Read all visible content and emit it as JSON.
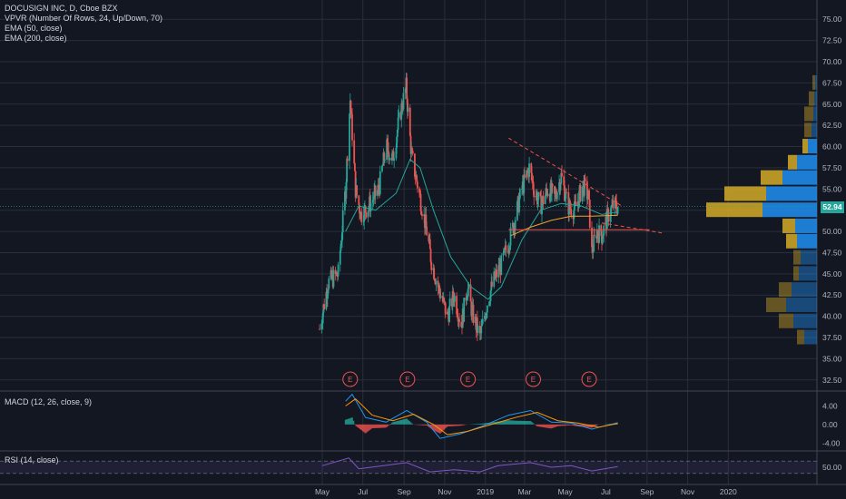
{
  "legend": {
    "main": "DOCUSIGN INC, D, Cboe BZX",
    "vpvr": "VPVR (Number Of Rows, 24, Up/Down, 70)",
    "ema50": "EMA (50, close)",
    "ema200": "EMA (200, close)",
    "macd": "MACD (12, 26, close, 9)",
    "rsi": "RSI (14, close)"
  },
  "price_tag": "52.94",
  "colors": {
    "bg": "#131722",
    "up": "#26a69a",
    "down": "#ef5350",
    "ema50": "#26a69a",
    "ema200": "#f0a030",
    "vol_up": "#1e88e5",
    "vol_down": "#c9a227",
    "rsi": "#7e57c2"
  },
  "chart_data": [
    {
      "type": "candlestick",
      "title": "DOCUSIGN INC, D, Cboe BZX",
      "x_tick_labels": [
        "May",
        "Jul",
        "Sep",
        "Nov",
        "2019",
        "Mar",
        "May",
        "Jul",
        "Sep",
        "Nov",
        "2020"
      ],
      "y_tick_labels": [
        "32.50",
        "35.00",
        "37.50",
        "40.00",
        "42.50",
        "45.00",
        "47.50",
        "50.00",
        "52.50",
        "55.00",
        "57.50",
        "60.00",
        "62.50",
        "65.00",
        "67.50",
        "70.00",
        "72.50",
        "75.00"
      ],
      "ylim": [
        31.3,
        76.2
      ],
      "last_price": 52.94,
      "close_path": [
        [
          "2018-04-27",
          38.5
        ],
        [
          "2018-05-10",
          44.0
        ],
        [
          "2018-05-25",
          45.0
        ],
        [
          "2018-06-05",
          55.0
        ],
        [
          "2018-06-12",
          65.5
        ],
        [
          "2018-06-20",
          55.0
        ],
        [
          "2018-06-28",
          52.0
        ],
        [
          "2018-07-10",
          53.0
        ],
        [
          "2018-07-25",
          55.0
        ],
        [
          "2018-08-05",
          60.0
        ],
        [
          "2018-08-15",
          58.5
        ],
        [
          "2018-08-25",
          63.5
        ],
        [
          "2018-09-04",
          67.0
        ],
        [
          "2018-09-12",
          59.0
        ],
        [
          "2018-09-25",
          54.0
        ],
        [
          "2018-10-05",
          50.0
        ],
        [
          "2018-10-12",
          46.5
        ],
        [
          "2018-10-22",
          43.5
        ],
        [
          "2018-11-05",
          40.0
        ],
        [
          "2018-11-15",
          42.5
        ],
        [
          "2018-11-26",
          39.0
        ],
        [
          "2018-12-05",
          43.5
        ],
        [
          "2018-12-12",
          40.5
        ],
        [
          "2018-12-24",
          37.5
        ],
        [
          "2019-01-05",
          42.0
        ],
        [
          "2019-01-15",
          44.5
        ],
        [
          "2019-01-25",
          46.0
        ],
        [
          "2019-02-10",
          50.0
        ],
        [
          "2019-02-25",
          55.0
        ],
        [
          "2019-03-08",
          57.5
        ],
        [
          "2019-03-15",
          55.0
        ],
        [
          "2019-03-25",
          53.0
        ],
        [
          "2019-04-05",
          55.0
        ],
        [
          "2019-04-15",
          54.0
        ],
        [
          "2019-04-25",
          56.5
        ],
        [
          "2019-05-05",
          53.0
        ],
        [
          "2019-05-15",
          52.5
        ],
        [
          "2019-05-28",
          55.5
        ],
        [
          "2019-06-05",
          54.0
        ],
        [
          "2019-06-10",
          47.5
        ],
        [
          "2019-06-17",
          50.0
        ],
        [
          "2019-06-25",
          49.5
        ],
        [
          "2019-07-05",
          52.0
        ],
        [
          "2019-07-12",
          53.0
        ],
        [
          "2019-07-19",
          52.94
        ]
      ],
      "ema50_path": [
        [
          "2018-06-05",
          50.0
        ],
        [
          "2018-06-25",
          53.0
        ],
        [
          "2018-07-20",
          52.5
        ],
        [
          "2018-08-20",
          54.5
        ],
        [
          "2018-09-10",
          58.5
        ],
        [
          "2018-09-25",
          57.5
        ],
        [
          "2018-10-15",
          52.5
        ],
        [
          "2018-11-10",
          47.0
        ],
        [
          "2018-12-10",
          43.5
        ],
        [
          "2019-01-05",
          42.0
        ],
        [
          "2019-01-25",
          43.5
        ],
        [
          "2019-02-25",
          49.0
        ],
        [
          "2019-03-25",
          52.5
        ],
        [
          "2019-04-25",
          53.3
        ],
        [
          "2019-05-25",
          53.0
        ],
        [
          "2019-06-25",
          52.0
        ],
        [
          "2019-07-19",
          52.3
        ]
      ],
      "ema200_path": [
        [
          "2019-02-08",
          49.5
        ],
        [
          "2019-03-10",
          50.5
        ],
        [
          "2019-04-10",
          51.3
        ],
        [
          "2019-05-10",
          51.8
        ],
        [
          "2019-06-10",
          51.8
        ],
        [
          "2019-07-19",
          51.9
        ]
      ],
      "trendlines": [
        {
          "from": [
            "2019-02-05",
            61.0
          ],
          "to": [
            "2019-07-25",
            53.0
          ],
          "style": "dashed"
        },
        {
          "from": [
            "2019-02-05",
            50.2
          ],
          "to": [
            "2019-09-05",
            50.2
          ],
          "style": "solid"
        },
        {
          "from": [
            "2019-06-25",
            51.0
          ],
          "to": [
            "2019-09-25",
            49.8
          ],
          "style": "dashed"
        }
      ],
      "earnings_markers": [
        {
          "date": "2018-06-12",
          "label": "E"
        },
        {
          "date": "2018-09-06",
          "label": "E"
        },
        {
          "date": "2018-12-06",
          "label": "E"
        },
        {
          "date": "2019-03-14",
          "label": "E"
        },
        {
          "date": "2019-06-06",
          "label": "E"
        }
      ],
      "volume_profile": [
        {
          "price": 37.5,
          "up": 14,
          "down": 8
        },
        {
          "price": 39.4,
          "up": 26,
          "down": 16
        },
        {
          "price": 41.3,
          "up": 34,
          "down": 22
        },
        {
          "price": 43.1,
          "up": 28,
          "down": 14
        },
        {
          "price": 45.0,
          "up": 20,
          "down": 6
        },
        {
          "price": 46.9,
          "up": 18,
          "down": 8
        },
        {
          "price": 48.8,
          "up": 22,
          "down": 12
        },
        {
          "price": 50.6,
          "up": 24,
          "down": 14
        },
        {
          "price": 52.5,
          "up": 60,
          "down": 62
        },
        {
          "price": 54.4,
          "up": 56,
          "down": 46
        },
        {
          "price": 56.3,
          "up": 38,
          "down": 24
        },
        {
          "price": 58.1,
          "up": 22,
          "down": 10
        },
        {
          "price": 60.0,
          "up": 10,
          "down": 6
        },
        {
          "price": 61.9,
          "up": 6,
          "down": 8
        },
        {
          "price": 63.8,
          "up": 4,
          "down": 10
        },
        {
          "price": 65.6,
          "up": 3,
          "down": 6
        },
        {
          "price": 67.5,
          "up": 2,
          "down": 3
        }
      ]
    },
    {
      "type": "line",
      "title": "MACD (12, 26, close, 9)",
      "y_tick_labels": [
        "4.00",
        "0.00",
        "-4.00"
      ],
      "ylim": [
        -5.5,
        7.0
      ],
      "series": [
        {
          "name": "MACD",
          "points": [
            [
              "2018-06-05",
              5.0
            ],
            [
              "2018-06-15",
              6.5
            ],
            [
              "2018-07-05",
              1.5
            ],
            [
              "2018-08-05",
              0.5
            ],
            [
              "2018-09-05",
              3.0
            ],
            [
              "2018-10-05",
              0.5
            ],
            [
              "2018-10-25",
              -3.0
            ],
            [
              "2018-11-25",
              -2.0
            ],
            [
              "2018-12-25",
              -0.5
            ],
            [
              "2019-02-05",
              2.0
            ],
            [
              "2019-03-10",
              3.0
            ],
            [
              "2019-04-10",
              0.5
            ],
            [
              "2019-05-10",
              0.3
            ],
            [
              "2019-06-10",
              -1.0
            ],
            [
              "2019-07-19",
              0.4
            ]
          ]
        },
        {
          "name": "Signal",
          "points": [
            [
              "2018-06-05",
              4.0
            ],
            [
              "2018-06-20",
              5.5
            ],
            [
              "2018-07-15",
              2.0
            ],
            [
              "2018-08-15",
              0.8
            ],
            [
              "2018-09-15",
              2.2
            ],
            [
              "2018-10-15",
              0.0
            ],
            [
              "2018-11-05",
              -2.2
            ],
            [
              "2018-12-05",
              -1.5
            ],
            [
              "2019-01-05",
              -0.2
            ],
            [
              "2019-02-15",
              1.5
            ],
            [
              "2019-03-20",
              2.6
            ],
            [
              "2019-04-20",
              0.8
            ],
            [
              "2019-05-20",
              0.3
            ],
            [
              "2019-06-20",
              -0.6
            ],
            [
              "2019-07-19",
              0.2
            ]
          ]
        }
      ]
    },
    {
      "type": "line",
      "title": "RSI (14, close)",
      "y_tick_labels": [
        "50.00"
      ],
      "ylim": [
        0,
        100
      ],
      "bands": [
        70,
        30
      ],
      "series": [
        {
          "name": "RSI",
          "points": [
            [
              "2018-05-01",
              55
            ],
            [
              "2018-06-10",
              80
            ],
            [
              "2018-06-25",
              45
            ],
            [
              "2018-08-01",
              55
            ],
            [
              "2018-09-05",
              65
            ],
            [
              "2018-10-10",
              35
            ],
            [
              "2018-11-15",
              42
            ],
            [
              "2018-12-24",
              35
            ],
            [
              "2019-01-20",
              55
            ],
            [
              "2019-03-10",
              65
            ],
            [
              "2019-04-10",
              50
            ],
            [
              "2019-05-10",
              55
            ],
            [
              "2019-06-10",
              38
            ],
            [
              "2019-07-19",
              52
            ]
          ]
        }
      ]
    }
  ]
}
